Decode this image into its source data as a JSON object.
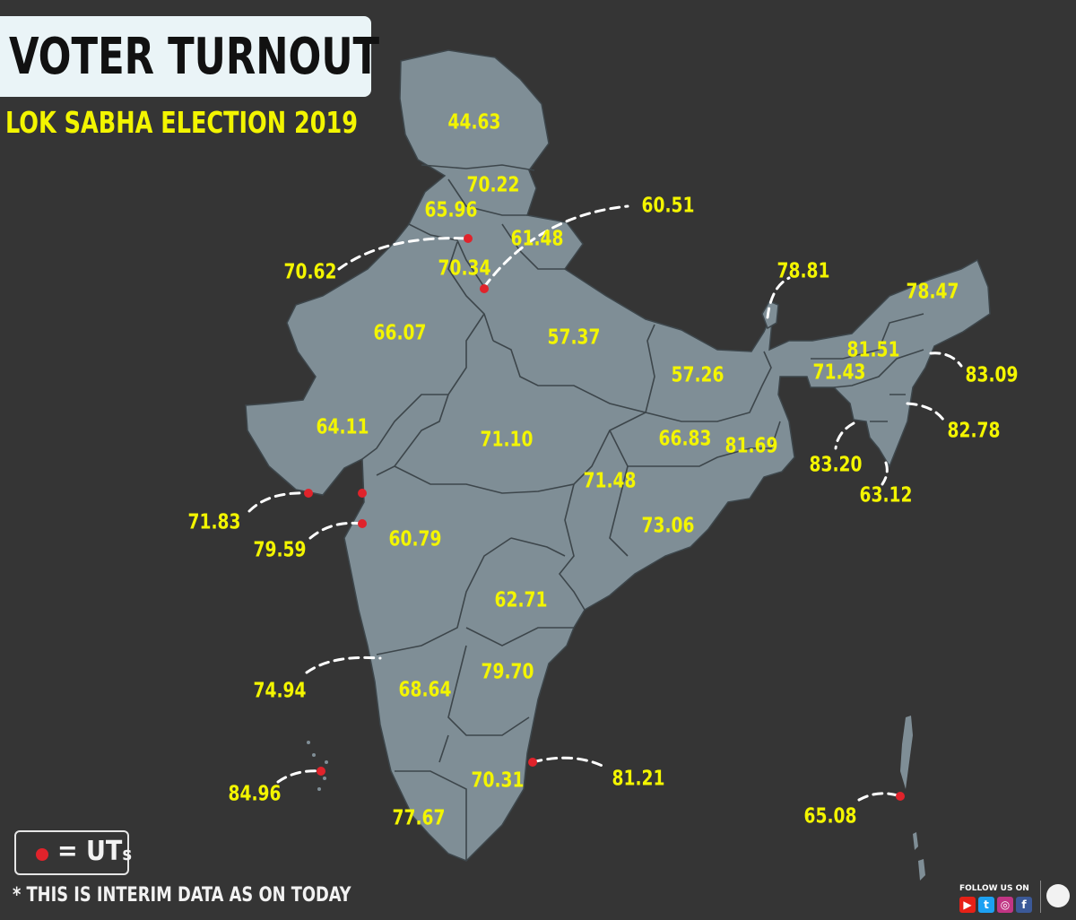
{
  "header": {
    "title": "VOTER TURNOUT",
    "subtitle": "LOK SABHA ELECTION 2019"
  },
  "colors": {
    "background": "#353535",
    "land": "#7f8e96",
    "border": "#3d464b",
    "label": "#f3f500",
    "ut_marker": "#e0232b"
  },
  "turnout_labels": [
    {
      "region": "Jammu & Kashmir",
      "value": "44.63"
    },
    {
      "region": "Himachal Pradesh",
      "value": "70.22"
    },
    {
      "region": "Punjab",
      "value": "65.96"
    },
    {
      "region": "Chandigarh",
      "value": "70.62",
      "ut": true
    },
    {
      "region": "Uttarakhand",
      "value": "61.48"
    },
    {
      "region": "Haryana",
      "value": "70.34"
    },
    {
      "region": "Delhi",
      "value": "60.51",
      "ut": true
    },
    {
      "region": "Rajasthan",
      "value": "66.07"
    },
    {
      "region": "Uttar Pradesh",
      "value": "57.37"
    },
    {
      "region": "Sikkim",
      "value": "78.81"
    },
    {
      "region": "Arunachal Pradesh",
      "value": "78.47"
    },
    {
      "region": "Assam",
      "value": "81.51"
    },
    {
      "region": "Meghalaya",
      "value": "71.43"
    },
    {
      "region": "Nagaland",
      "value": "83.09"
    },
    {
      "region": "Bihar",
      "value": "57.26"
    },
    {
      "region": "Gujarat",
      "value": "64.11"
    },
    {
      "region": "Madhya Pradesh",
      "value": "71.10"
    },
    {
      "region": "Jharkhand",
      "value": "66.83"
    },
    {
      "region": "West Bengal",
      "value": "81.69"
    },
    {
      "region": "Manipur",
      "value": "82.78"
    },
    {
      "region": "Tripura",
      "value": "83.20"
    },
    {
      "region": "Mizoram",
      "value": "63.12"
    },
    {
      "region": "Chhattisgarh",
      "value": "71.48"
    },
    {
      "region": "Daman & Diu",
      "value": "71.83",
      "ut": true
    },
    {
      "region": "Dadra & Nagar Haveli",
      "value": "79.59",
      "ut": true
    },
    {
      "region": "Maharashtra",
      "value": "60.79"
    },
    {
      "region": "Odisha",
      "value": "73.06"
    },
    {
      "region": "Telangana",
      "value": "62.71"
    },
    {
      "region": "Goa",
      "value": "74.94"
    },
    {
      "region": "Andhra Pradesh",
      "value": "79.70"
    },
    {
      "region": "Karnataka",
      "value": "68.64"
    },
    {
      "region": "Puducherry",
      "value": "81.21",
      "ut": true
    },
    {
      "region": "Lakshadweep",
      "value": "84.96",
      "ut": true
    },
    {
      "region": "Tamil Nadu",
      "value": "70.31"
    },
    {
      "region": "Kerala",
      "value": "77.67"
    },
    {
      "region": "Andaman & Nicobar Islands",
      "value": "65.08",
      "ut": true
    }
  ],
  "legend": {
    "equals": "= UT",
    "suffix": "s"
  },
  "footnote": "* THIS IS INTERIM DATA AS ON  TODAY",
  "follow": {
    "text": "FOLLOW US ON",
    "icons": [
      "youtube-icon",
      "twitter-icon",
      "instagram-icon",
      "facebook-icon"
    ]
  }
}
